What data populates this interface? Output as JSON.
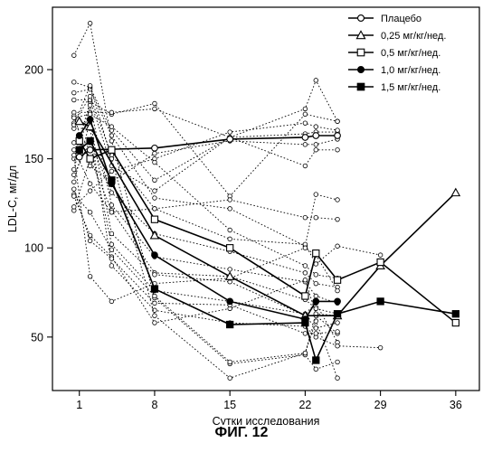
{
  "figure_caption": "ФИГ. 12",
  "chart_data": {
    "type": "line",
    "xlabel": "Сутки исследования",
    "ylabel": "LDL-C, мг/дл",
    "x_ticks": [
      1,
      8,
      15,
      22,
      29,
      36
    ],
    "y_ticks": [
      50,
      100,
      150,
      200
    ],
    "xlim": [
      -1.5,
      38.2
    ],
    "ylim": [
      20,
      235
    ],
    "grid": false,
    "legend_position": "top-right",
    "series": [
      {
        "name": "Плацебо",
        "marker": "open-circle",
        "line": "solid",
        "points": [
          [
            1,
            151
          ],
          [
            2,
            155
          ],
          [
            8,
            156
          ],
          [
            15,
            161
          ],
          [
            22,
            162
          ],
          [
            23,
            163
          ],
          [
            25,
            163
          ]
        ]
      },
      {
        "name": "0,25 мг/кг/нед.",
        "marker": "open-triangle",
        "line": "solid",
        "points": [
          [
            1,
            171
          ],
          [
            2,
            168
          ],
          [
            8,
            107
          ],
          [
            15,
            84
          ],
          [
            22,
            62
          ],
          [
            25,
            62
          ],
          [
            29,
            90
          ],
          [
            36,
            131
          ]
        ]
      },
      {
        "name": "0,5 мг/кг/нед.",
        "marker": "open-square",
        "line": "solid",
        "points": [
          [
            1,
            160
          ],
          [
            2,
            150
          ],
          [
            4,
            155
          ],
          [
            8,
            116
          ],
          [
            15,
            100
          ],
          [
            22,
            73
          ],
          [
            23,
            97
          ],
          [
            25,
            82
          ],
          [
            29,
            92
          ],
          [
            36,
            58
          ]
        ]
      },
      {
        "name": "1,0 мг/кг/нед.",
        "marker": "filled-circle",
        "line": "solid",
        "points": [
          [
            1,
            163
          ],
          [
            2,
            172
          ],
          [
            4,
            136
          ],
          [
            8,
            96
          ],
          [
            15,
            70
          ],
          [
            22,
            60
          ],
          [
            23,
            70
          ],
          [
            25,
            70
          ]
        ]
      },
      {
        "name": "1,5 мг/кг/нед.",
        "marker": "filled-square",
        "line": "solid",
        "points": [
          [
            1,
            155
          ],
          [
            2,
            160
          ],
          [
            4,
            138
          ],
          [
            8,
            77
          ],
          [
            15,
            57
          ],
          [
            22,
            58
          ],
          [
            23,
            37
          ],
          [
            25,
            63
          ],
          [
            29,
            70
          ],
          [
            36,
            63
          ]
        ]
      }
    ],
    "individual_subjects": [
      [
        [
          0.5,
          150
        ],
        [
          2,
          182
        ],
        [
          4,
          175
        ],
        [
          8,
          181
        ],
        [
          15,
          129
        ],
        [
          22,
          175
        ],
        [
          25,
          171
        ]
      ],
      [
        [
          0.5,
          176
        ],
        [
          2,
          176
        ],
        [
          4,
          176
        ],
        [
          8,
          178
        ],
        [
          15,
          162
        ],
        [
          22,
          178
        ],
        [
          23,
          194
        ],
        [
          25,
          171
        ]
      ],
      [
        [
          0.5,
          193
        ],
        [
          2,
          190
        ],
        [
          4,
          166
        ],
        [
          8,
          138
        ],
        [
          15,
          162
        ],
        [
          22,
          146
        ],
        [
          23,
          155
        ],
        [
          25,
          155
        ]
      ],
      [
        [
          0.5,
          187
        ],
        [
          2,
          189
        ],
        [
          4,
          163
        ],
        [
          8,
          128
        ],
        [
          15,
          122
        ],
        [
          22,
          101
        ],
        [
          23,
          130
        ],
        [
          25,
          127
        ]
      ],
      [
        [
          0.5,
          183
        ],
        [
          2,
          183
        ],
        [
          4,
          146
        ],
        [
          8,
          132
        ],
        [
          15,
          162
        ],
        [
          22,
          164
        ],
        [
          23,
          165
        ],
        [
          25,
          165
        ]
      ],
      [
        [
          0.5,
          170
        ],
        [
          2,
          185
        ],
        [
          4,
          152
        ],
        [
          8,
          122
        ],
        [
          15,
          105
        ],
        [
          22,
          102
        ],
        [
          23,
          91
        ],
        [
          25,
          101
        ],
        [
          29,
          96
        ]
      ],
      [
        [
          0.5,
          141
        ],
        [
          2,
          160
        ],
        [
          4,
          131
        ],
        [
          8,
          108
        ],
        [
          15,
          98
        ],
        [
          22,
          86
        ],
        [
          23,
          80
        ],
        [
          25,
          78
        ]
      ],
      [
        [
          0.5,
          144
        ],
        [
          2,
          180
        ],
        [
          4,
          124
        ],
        [
          8,
          95
        ],
        [
          15,
          88
        ],
        [
          22,
          81
        ],
        [
          23,
          73
        ],
        [
          25,
          69
        ]
      ],
      [
        [
          0.5,
          121
        ],
        [
          2,
          150
        ],
        [
          4,
          121
        ],
        [
          8,
          86
        ],
        [
          15,
          84
        ],
        [
          22,
          71
        ],
        [
          23,
          66
        ],
        [
          25,
          63
        ]
      ],
      [
        [
          0.5,
          137
        ],
        [
          2,
          171
        ],
        [
          4,
          108
        ],
        [
          8,
          85
        ],
        [
          15,
          81
        ],
        [
          22,
          62
        ],
        [
          23,
          55
        ],
        [
          25,
          58
        ]
      ],
      [
        [
          0.5,
          159
        ],
        [
          2,
          159
        ],
        [
          4,
          102
        ],
        [
          8,
          76
        ],
        [
          15,
          70
        ],
        [
          22,
          63
        ],
        [
          23,
          69
        ],
        [
          25,
          47
        ]
      ],
      [
        [
          0.5,
          167
        ],
        [
          2,
          167
        ],
        [
          4,
          90
        ],
        [
          8,
          65
        ],
        [
          15,
          58
        ],
        [
          22,
          56
        ],
        [
          23,
          50
        ],
        [
          25,
          45
        ],
        [
          29,
          44
        ]
      ],
      [
        [
          0.5,
          208
        ],
        [
          2,
          226
        ],
        [
          4,
          160
        ],
        [
          8,
          72
        ],
        [
          15,
          35
        ],
        [
          22,
          40
        ],
        [
          23,
          32
        ],
        [
          25,
          36
        ]
      ],
      [
        [
          0.5,
          169
        ],
        [
          2,
          191
        ],
        [
          4,
          150
        ],
        [
          8,
          62
        ],
        [
          15,
          27
        ],
        [
          22,
          41
        ],
        [
          23,
          59
        ],
        [
          25,
          27
        ]
      ],
      [
        [
          0.5,
          130
        ],
        [
          2,
          120
        ],
        [
          4,
          99
        ],
        [
          8,
          73
        ],
        [
          15,
          36
        ],
        [
          22,
          41
        ],
        [
          23,
          62
        ],
        [
          25,
          52
        ]
      ],
      [
        [
          0.5,
          129
        ],
        [
          2,
          107
        ],
        [
          4,
          95
        ],
        [
          8,
          58
        ],
        [
          15,
          66
        ],
        [
          22,
          82
        ],
        [
          23,
          63
        ],
        [
          25,
          62
        ]
      ],
      [
        [
          0.5,
          133
        ],
        [
          2,
          104
        ],
        [
          4,
          94
        ],
        [
          8,
          69
        ],
        [
          15,
          68
        ],
        [
          22,
          52
        ],
        [
          23,
          52
        ],
        [
          25,
          53
        ]
      ],
      [
        [
          0.5,
          152
        ],
        [
          2,
          84
        ],
        [
          4,
          70
        ],
        [
          8,
          80
        ],
        [
          15,
          83
        ],
        [
          22,
          100
        ],
        [
          23,
          96
        ],
        [
          25,
          76
        ]
      ],
      [
        [
          0.5,
          155
        ],
        [
          2,
          136
        ],
        [
          4,
          120
        ],
        [
          8,
          122
        ],
        [
          15,
          127
        ],
        [
          22,
          117
        ],
        [
          23,
          117
        ],
        [
          25,
          116
        ]
      ],
      [
        [
          0.5,
          123
        ],
        [
          2,
          132
        ],
        [
          4,
          143
        ],
        [
          8,
          150
        ],
        [
          15,
          165
        ],
        [
          22,
          170
        ],
        [
          23,
          168
        ],
        [
          25,
          166
        ]
      ],
      [
        [
          0.5,
          174
        ],
        [
          2,
          146
        ],
        [
          4,
          137
        ],
        [
          8,
          153
        ],
        [
          15,
          160
        ],
        [
          22,
          158
        ],
        [
          23,
          158
        ],
        [
          25,
          161
        ]
      ],
      [
        [
          0.5,
          173
        ],
        [
          2,
          175
        ],
        [
          4,
          168
        ],
        [
          8,
          148
        ],
        [
          15,
          110
        ],
        [
          22,
          90
        ],
        [
          23,
          85
        ],
        [
          25,
          83
        ]
      ]
    ]
  }
}
